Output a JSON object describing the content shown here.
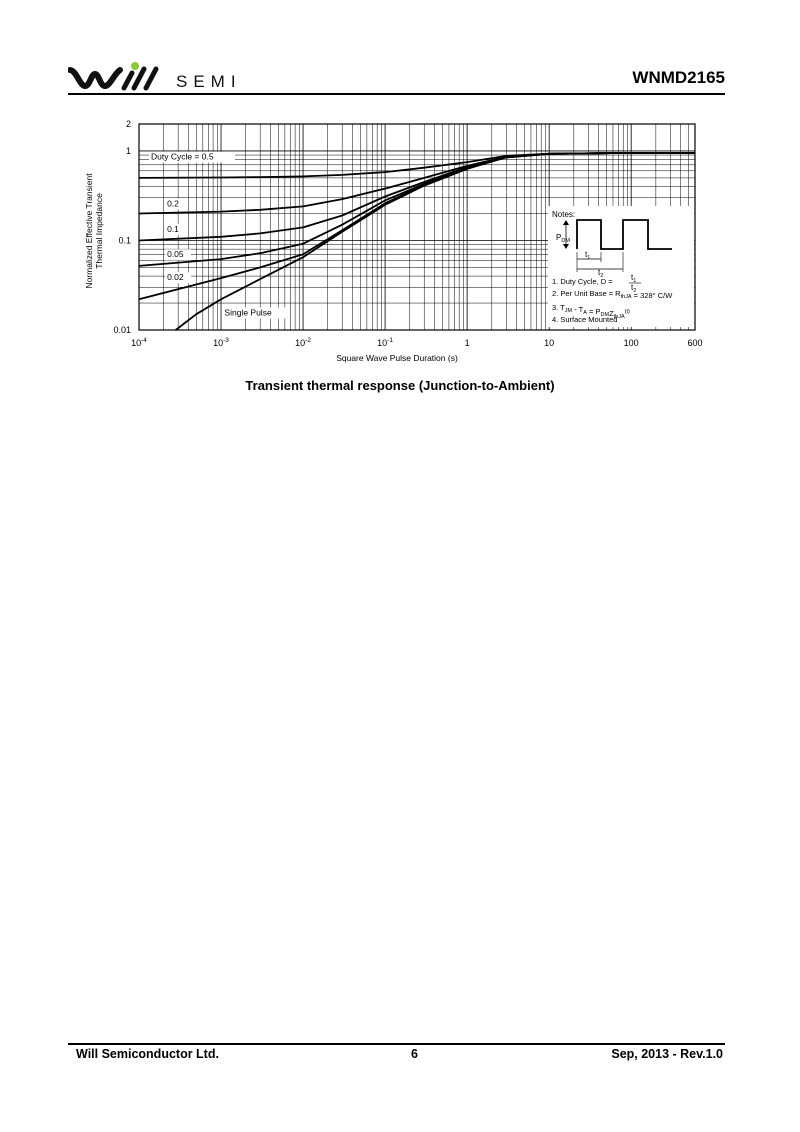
{
  "header": {
    "logo_text": "SEMI",
    "part_number": "WNMD2165",
    "logo_colors": {
      "mark": "#111111",
      "dot": "#8cc63f"
    }
  },
  "caption": "Transient thermal response (Junction-to-Ambient)",
  "footer": {
    "company": "Will Semiconductor Ltd.",
    "page": "6",
    "revision": "Sep, 2013 - Rev.1.0"
  },
  "chart_data": {
    "type": "line",
    "title": "",
    "xlabel": "Square Wave Pulse Duration (s)",
    "ylabel_lines": [
      "Normalized Effective Transient",
      "Thermal Impedance"
    ],
    "xscale": "log",
    "yscale": "log",
    "xlim": [
      0.0001,
      600
    ],
    "ylim": [
      0.01,
      2
    ],
    "grid": true,
    "x_ticks": [
      {
        "value": 0.0001,
        "base": "10",
        "exp": "-4"
      },
      {
        "value": 0.001,
        "base": "10",
        "exp": "-3"
      },
      {
        "value": 0.01,
        "base": "10",
        "exp": "-2"
      },
      {
        "value": 0.1,
        "base": "10",
        "exp": "-1"
      },
      {
        "value": 1,
        "base": "1",
        "exp": ""
      },
      {
        "value": 10,
        "base": "10",
        "exp": ""
      },
      {
        "value": 100,
        "base": "100",
        "exp": ""
      },
      {
        "value": 600,
        "base": "600",
        "exp": ""
      }
    ],
    "y_ticks": [
      {
        "value": 2,
        "label": "2"
      },
      {
        "value": 1,
        "label": "1"
      },
      {
        "value": 0.1,
        "label": "0.1"
      },
      {
        "value": 0.01,
        "label": "0.01"
      }
    ],
    "series": [
      {
        "name": "Duty Cycle = 0.5",
        "label_at": [
          0.00014,
          0.8
        ],
        "x": [
          0.0001,
          0.001,
          0.003,
          0.01,
          0.03,
          0.1,
          0.3,
          1,
          3,
          10,
          100,
          600
        ],
        "y": [
          0.5,
          0.505,
          0.51,
          0.52,
          0.54,
          0.58,
          0.65,
          0.75,
          0.88,
          0.93,
          0.95,
          0.95
        ]
      },
      {
        "name": "0.2",
        "label_at": [
          0.00022,
          0.24
        ],
        "x": [
          0.0001,
          0.001,
          0.003,
          0.01,
          0.03,
          0.1,
          0.3,
          1,
          3,
          10,
          100,
          600
        ],
        "y": [
          0.2,
          0.21,
          0.22,
          0.24,
          0.29,
          0.38,
          0.5,
          0.68,
          0.86,
          0.93,
          0.95,
          0.95
        ]
      },
      {
        "name": "0.1",
        "label_at": [
          0.00022,
          0.125
        ],
        "x": [
          0.0001,
          0.001,
          0.003,
          0.01,
          0.03,
          0.1,
          0.3,
          1,
          3,
          10,
          100,
          600
        ],
        "y": [
          0.1,
          0.11,
          0.12,
          0.14,
          0.19,
          0.31,
          0.45,
          0.66,
          0.85,
          0.93,
          0.95,
          0.95
        ]
      },
      {
        "name": "0.05",
        "label_at": [
          0.00022,
          0.065
        ],
        "x": [
          0.0001,
          0.001,
          0.003,
          0.01,
          0.03,
          0.1,
          0.3,
          1,
          3,
          10,
          100,
          600
        ],
        "y": [
          0.052,
          0.062,
          0.072,
          0.092,
          0.15,
          0.28,
          0.43,
          0.65,
          0.85,
          0.93,
          0.95,
          0.95
        ]
      },
      {
        "name": "0.02",
        "label_at": [
          0.00022,
          0.036
        ],
        "x": [
          0.0001,
          0.001,
          0.003,
          0.01,
          0.03,
          0.1,
          0.3,
          1,
          3,
          10,
          100,
          600
        ],
        "y": [
          0.022,
          0.038,
          0.05,
          0.07,
          0.13,
          0.26,
          0.42,
          0.64,
          0.85,
          0.93,
          0.95,
          0.95
        ]
      },
      {
        "name": "Single Pulse",
        "label_at": [
          0.0011,
          0.0145
        ],
        "x": [
          0.00028,
          0.0005,
          0.001,
          0.003,
          0.01,
          0.03,
          0.1,
          0.3,
          1,
          3,
          10,
          100,
          600
        ],
        "y": [
          0.01,
          0.015,
          0.022,
          0.037,
          0.065,
          0.125,
          0.25,
          0.41,
          0.63,
          0.85,
          0.93,
          0.95,
          0.95
        ]
      }
    ],
    "notes": {
      "title": "Notes:",
      "pdm_label": "P",
      "pdm_sub": "DM",
      "t1": "t",
      "t1_sub": "1",
      "t2": "t",
      "t2_sub": "2",
      "items": [
        {
          "parts": [
            [
              "",
              "1. Duty Cycle, D = "
            ]
          ],
          "fraction": {
            "num": "t1",
            "den": "t2"
          }
        },
        {
          "parts": [
            [
              "",
              "2. Per Unit Base = R"
            ],
            [
              "sub",
              "thJA"
            ],
            [
              "",
              " = 328° C/W"
            ]
          ]
        },
        {
          "parts": [
            [
              "",
              "3. T"
            ],
            [
              "sub",
              "JM"
            ],
            [
              "",
              " - T"
            ],
            [
              "sub",
              "A"
            ],
            [
              "",
              " = P"
            ],
            [
              "sub",
              "DM"
            ],
            [
              "",
              "Z"
            ],
            [
              "sub",
              "thJA"
            ],
            [
              "sup",
              "(t)"
            ]
          ]
        },
        {
          "parts": [
            [
              "",
              "4. Surface Mounted"
            ]
          ]
        }
      ]
    }
  }
}
